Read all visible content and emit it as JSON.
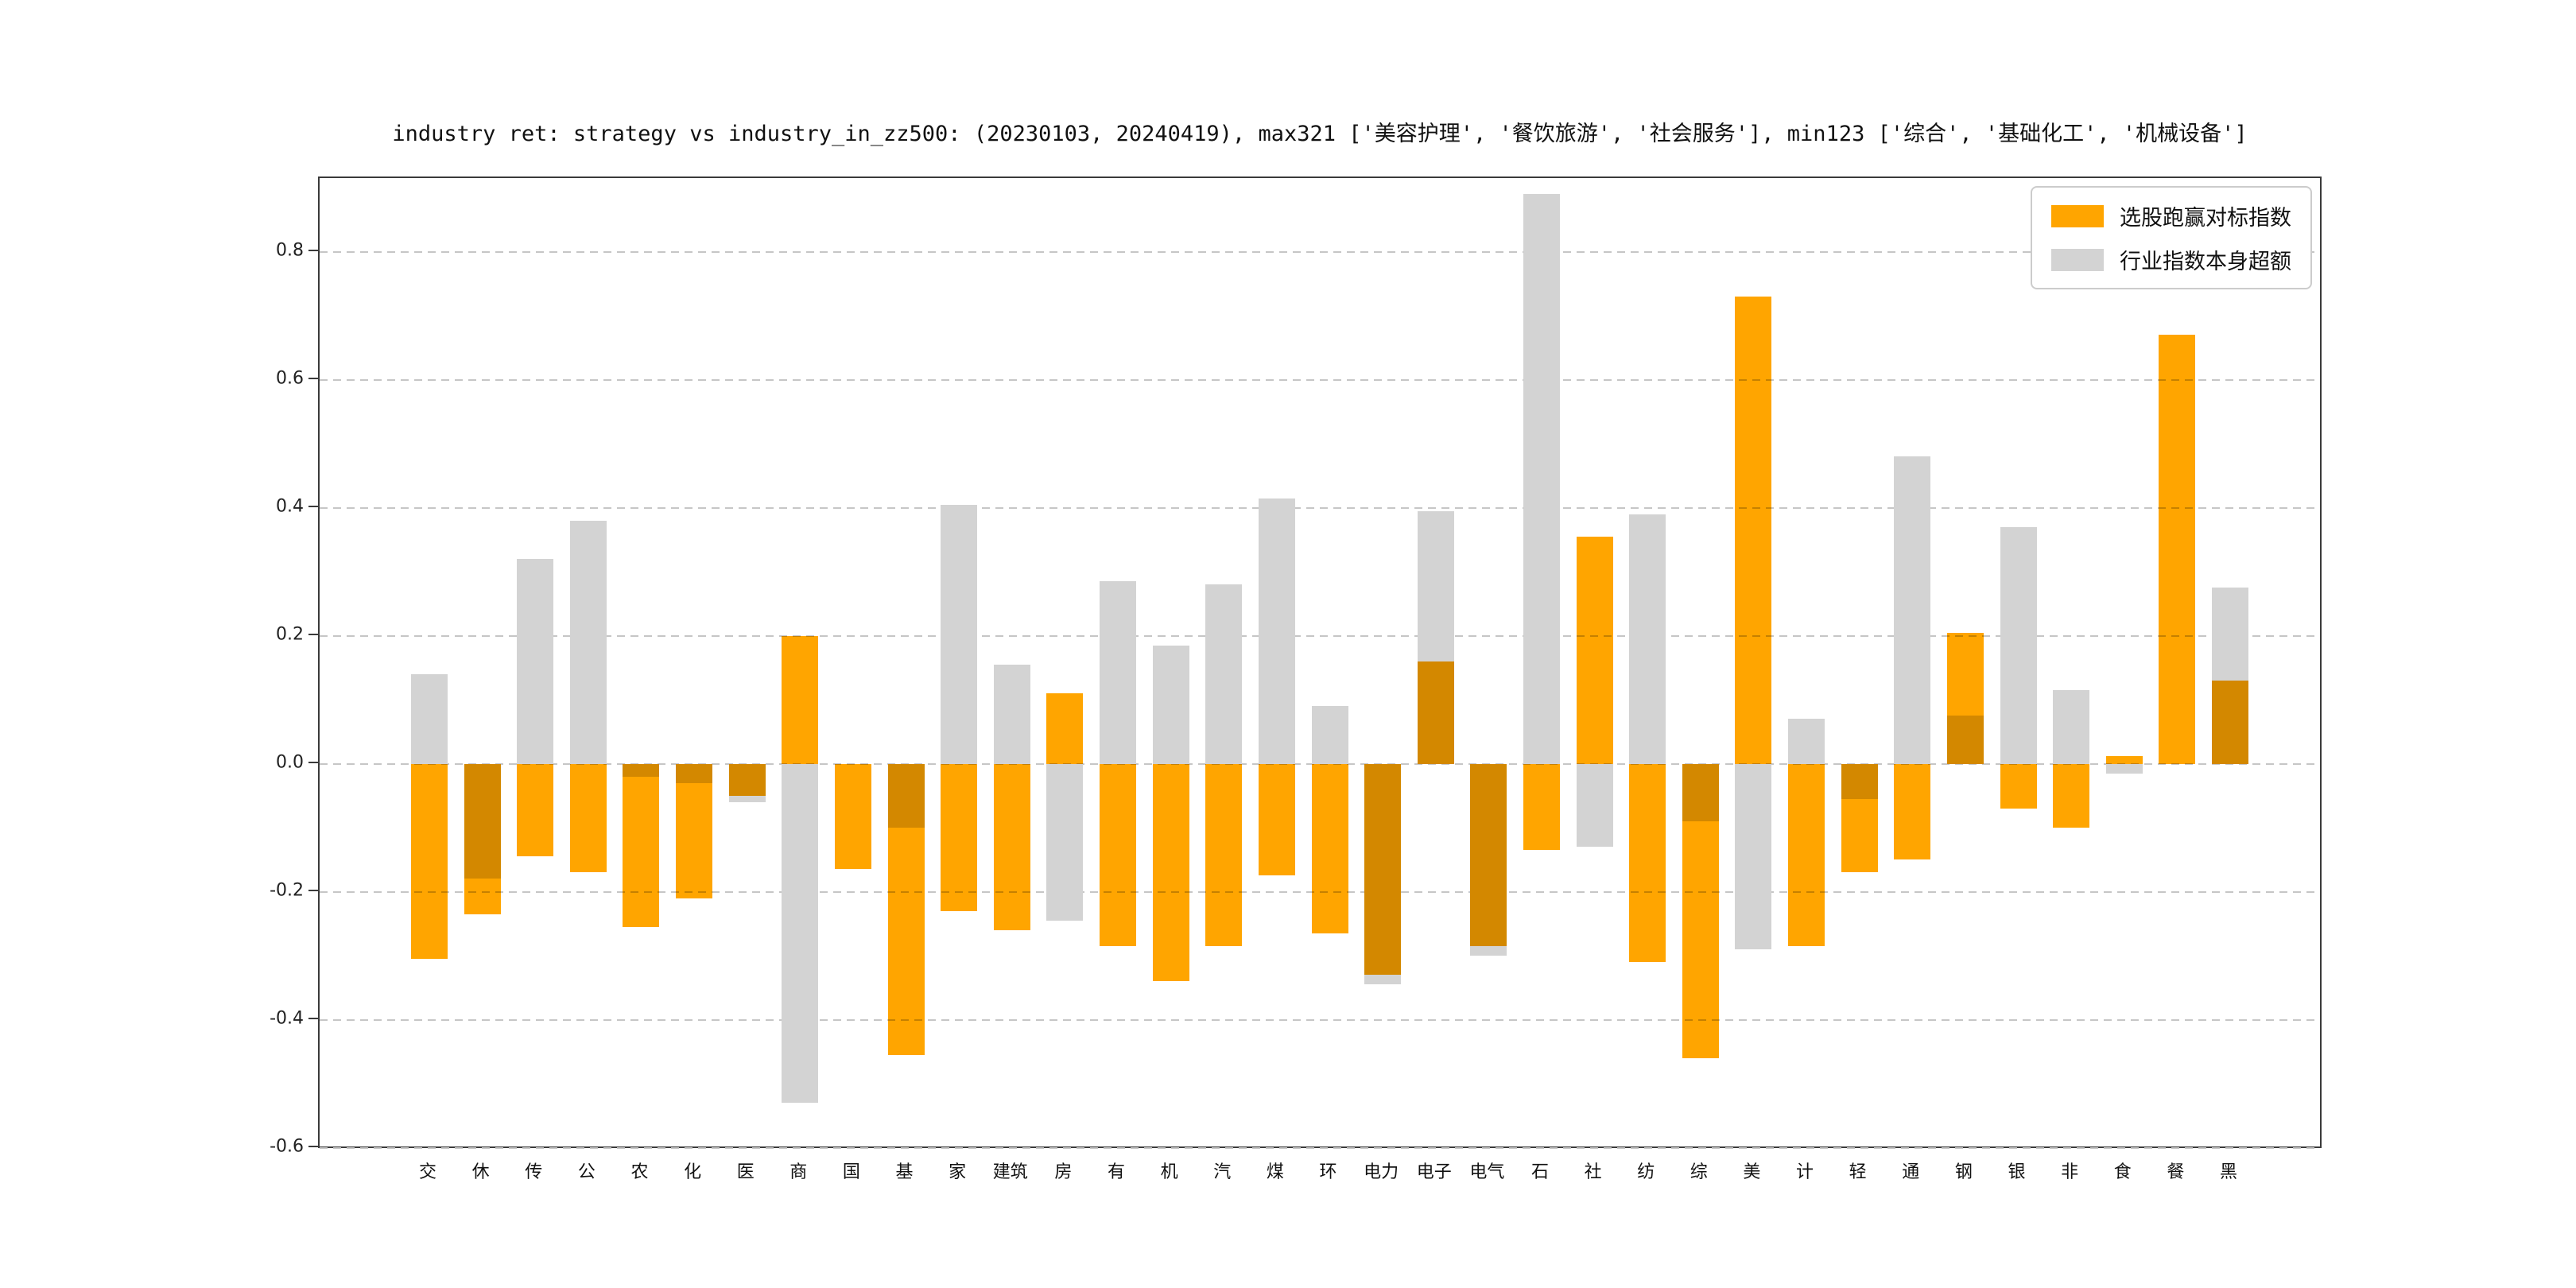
{
  "title": "industry ret: strategy vs industry_in_zz500: (20230103, 20240419), max321 ['美容护理', '餐饮旅游', '社会服务'], min123 ['综合', '基础化工', '机械设备']",
  "legend": [
    {
      "label": "选股跑赢对标指数",
      "color": "#FFA500"
    },
    {
      "label": "行业指数本身超额",
      "color": "#D3D3D3"
    }
  ],
  "chart_data": {
    "type": "bar",
    "title": "industry ret: strategy vs industry_in_zz500: (20230103, 20240419), max321 ['美容护理', '餐饮旅游', '社会服务'], min123 ['综合', '基础化工', '机械设备']",
    "categories": [
      "交",
      "休",
      "传",
      "公",
      "农",
      "化",
      "医",
      "商",
      "国",
      "基",
      "家",
      "建筑",
      "房",
      "有",
      "机",
      "汽",
      "煤",
      "环",
      "电力",
      "电子",
      "电气",
      "石",
      "社",
      "纺",
      "综",
      "美",
      "计",
      "轻",
      "通",
      "钢",
      "银",
      "非",
      "食",
      "餐",
      "黑"
    ],
    "series": [
      {
        "name": "选股跑赢对标指数",
        "color": "#FFA500",
        "values": [
          -0.305,
          -0.235,
          -0.145,
          -0.17,
          -0.255,
          -0.21,
          -0.05,
          0.2,
          -0.165,
          -0.455,
          -0.23,
          -0.26,
          0.11,
          -0.285,
          -0.34,
          -0.285,
          -0.175,
          -0.265,
          -0.33,
          0.16,
          -0.285,
          -0.135,
          0.355,
          -0.31,
          -0.46,
          0.73,
          -0.285,
          -0.17,
          -0.15,
          0.205,
          -0.07,
          -0.1,
          0.012,
          0.67,
          0.13
        ]
      },
      {
        "name": "行业指数本身超额",
        "color": "#D3D3D3",
        "values": [
          0.14,
          -0.18,
          0.32,
          0.38,
          -0.02,
          -0.03,
          -0.06,
          -0.53,
          0.0,
          -0.1,
          0.405,
          0.155,
          -0.245,
          0.285,
          0.185,
          0.28,
          0.415,
          0.09,
          -0.345,
          0.395,
          -0.3,
          0.89,
          -0.13,
          0.39,
          -0.09,
          -0.29,
          0.07,
          -0.055,
          0.48,
          0.075,
          0.37,
          0.115,
          -0.015,
          0.0,
          0.275
        ]
      }
    ],
    "yticks": [
      0.8,
      0.6,
      0.4,
      0.2,
      0.0,
      -0.2,
      -0.4,
      -0.6
    ],
    "ylim": [
      -0.603,
      0.915
    ],
    "xlabel": "",
    "ylabel": "",
    "grid": "dashed-horizontal",
    "legend_position": "upper right"
  }
}
